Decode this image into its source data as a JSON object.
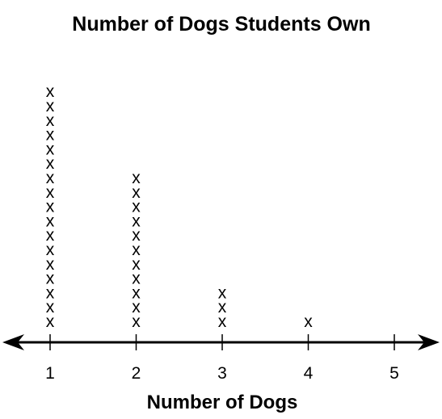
{
  "chart_data": {
    "type": "dot-plot",
    "title": "Number of Dogs Students Own",
    "xlabel": "Number of Dogs",
    "ylabel": "",
    "x_ticks": [
      "1",
      "2",
      "3",
      "4",
      "5"
    ],
    "xlim": [
      1,
      5
    ],
    "mark_symbol": "x",
    "points": [
      {
        "x": 1,
        "count": 17
      },
      {
        "x": 2,
        "count": 11
      },
      {
        "x": 3,
        "count": 3
      },
      {
        "x": 4,
        "count": 1
      },
      {
        "x": 5,
        "count": 0
      }
    ],
    "arrows_on_axis": true,
    "grid": false,
    "legend": "none"
  }
}
